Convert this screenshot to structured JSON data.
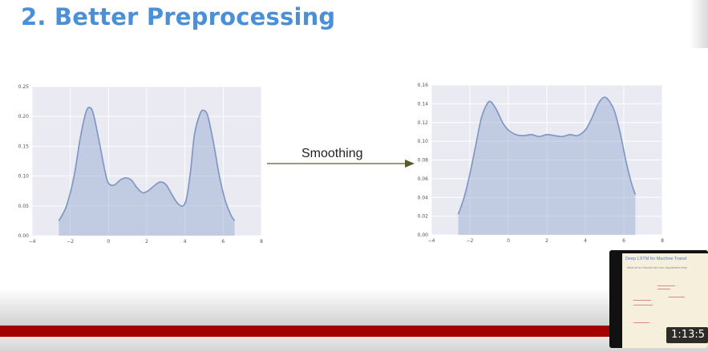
{
  "slide": {
    "title": "2. Better Preprocessing"
  },
  "arrow": {
    "label": "Smoothing",
    "color": "#5a5a2a"
  },
  "chart_data": [
    {
      "type": "area",
      "title": "",
      "xlabel": "",
      "ylabel": "",
      "xlim": [
        -4,
        8
      ],
      "ylim": [
        0,
        0.25
      ],
      "xticks": [
        "−4",
        "−2",
        "0",
        "2",
        "4",
        "6",
        "8"
      ],
      "yticks": [
        "0.00",
        "0.05",
        "0.10",
        "0.15",
        "0.20",
        "0.25"
      ],
      "grid": true,
      "series": [
        {
          "color": "#7f98c4",
          "x": [
            -2.6,
            -2.2,
            -1.8,
            -1.5,
            -1.2,
            -1.0,
            -0.8,
            -0.5,
            -0.2,
            0.0,
            0.3,
            0.6,
            0.9,
            1.2,
            1.5,
            1.8,
            2.1,
            2.4,
            2.7,
            3.0,
            3.3,
            3.6,
            3.9,
            4.1,
            4.3,
            4.5,
            4.8,
            5.0,
            5.2,
            5.5,
            5.8,
            6.1,
            6.4,
            6.6
          ],
          "y": [
            0.025,
            0.05,
            0.1,
            0.16,
            0.205,
            0.215,
            0.205,
            0.16,
            0.11,
            0.088,
            0.085,
            0.093,
            0.097,
            0.093,
            0.08,
            0.072,
            0.076,
            0.084,
            0.09,
            0.086,
            0.07,
            0.055,
            0.05,
            0.065,
            0.11,
            0.17,
            0.205,
            0.21,
            0.2,
            0.155,
            0.1,
            0.06,
            0.035,
            0.025
          ]
        }
      ]
    },
    {
      "type": "area",
      "title": "",
      "xlabel": "",
      "ylabel": "",
      "xlim": [
        -4,
        8
      ],
      "ylim": [
        0,
        0.16
      ],
      "xticks": [
        "−4",
        "−2",
        "0",
        "2",
        "4",
        "6",
        "8"
      ],
      "yticks": [
        "0.00",
        "0.02",
        "0.04",
        "0.06",
        "0.08",
        "0.10",
        "0.12",
        "0.14",
        "0.16"
      ],
      "grid": true,
      "series": [
        {
          "color": "#7f98c4",
          "x": [
            -2.6,
            -2.3,
            -2.0,
            -1.7,
            -1.4,
            -1.1,
            -0.9,
            -0.6,
            -0.3,
            0.0,
            0.4,
            0.8,
            1.2,
            1.6,
            2.0,
            2.4,
            2.8,
            3.2,
            3.6,
            4.0,
            4.3,
            4.6,
            4.8,
            5.0,
            5.2,
            5.5,
            5.8,
            6.1,
            6.4,
            6.6
          ],
          "y": [
            0.022,
            0.04,
            0.065,
            0.095,
            0.125,
            0.14,
            0.142,
            0.133,
            0.12,
            0.112,
            0.107,
            0.106,
            0.107,
            0.105,
            0.107,
            0.106,
            0.105,
            0.107,
            0.106,
            0.112,
            0.123,
            0.137,
            0.144,
            0.147,
            0.144,
            0.133,
            0.11,
            0.08,
            0.055,
            0.043
          ]
        }
      ]
    }
  ],
  "video": {
    "thumbnail_title": "Deep LSTM for Machine Transl",
    "thumbnail_subtitle": "What all our theories fail: how, why/whether they",
    "timestamp": "1:13:5"
  }
}
